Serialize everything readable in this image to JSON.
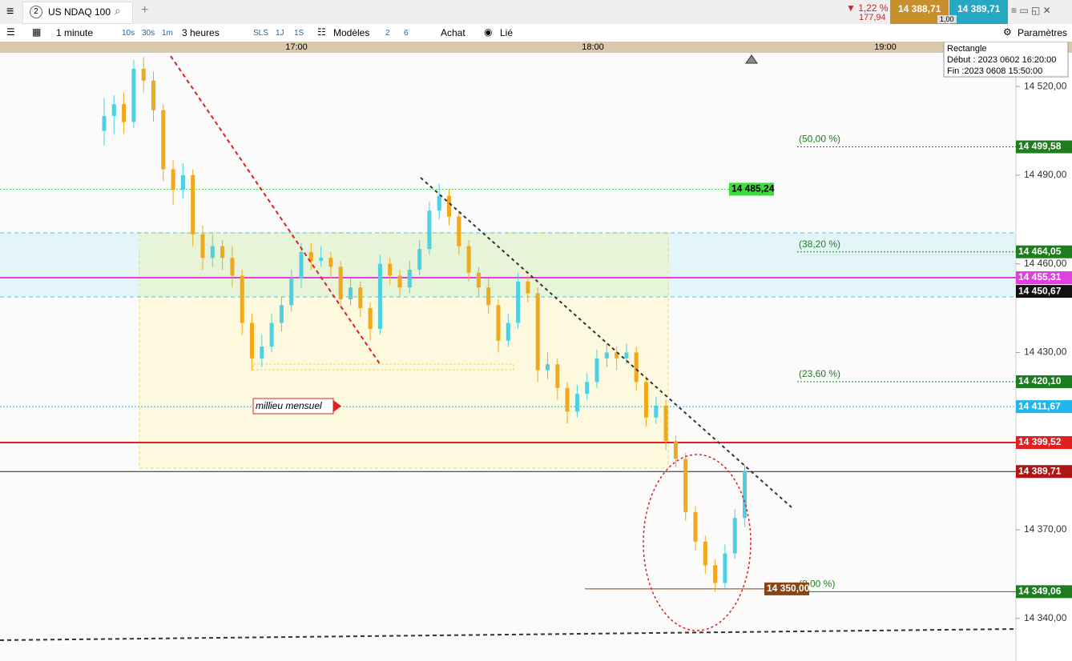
{
  "header": {
    "tab_number": "2",
    "instrument": "US NDAQ 100",
    "change_pct": "▼ 1,22 %",
    "change_pts": "177,94",
    "bid": "14 388,71",
    "spread": "1,00",
    "ask": "14 389,71"
  },
  "toolbar": {
    "interval": "1 minute",
    "quick": [
      "10s",
      "30s",
      "1m"
    ],
    "range": "3 heures",
    "periods": [
      "SLS",
      "1J",
      "1S"
    ],
    "templates": "Modèles",
    "n2": "2",
    "n6": "6",
    "buy": "Achat",
    "link": "Lié",
    "settings": "Paramètres"
  },
  "tooltip": {
    "title": "Rectangle",
    "start": "Début : 2023 0602 16:20:00",
    "end": "Fin :2023 0608 15:50:00"
  },
  "annotation": "millieu mensuel",
  "chart_data": {
    "type": "candlestick",
    "time_labels": [
      "17:00",
      "18:00",
      "19:00"
    ],
    "up_color": "#4dd0e1",
    "down_color": "#f0a81c",
    "ylim": [
      14325.6,
      14531.4
    ],
    "yticks": [
      {
        "value": 14520,
        "label": "14 520,00"
      },
      {
        "value": 14490,
        "label": "14 490,00"
      },
      {
        "value": 14460,
        "label": "14 460,00"
      },
      {
        "value": 14430,
        "label": "14 430,00"
      },
      {
        "value": 14370,
        "label": "14 370,00"
      },
      {
        "value": 14340,
        "label": "14 340,00"
      }
    ],
    "levels": [
      {
        "value": 14499.58,
        "label": "14 499,58",
        "kind": "fib",
        "fib": "(50,00 %)",
        "color": "#1e7d1e",
        "style": "dotted"
      },
      {
        "value": 14485.24,
        "label": "14 485,24",
        "kind": "alert",
        "color": "#3ddc3d",
        "style": "dotted"
      },
      {
        "value": 14464.05,
        "label": "14 464,05",
        "kind": "fib",
        "fib": "(38,20 %)",
        "color": "#1e7d1e",
        "style": "dotted"
      },
      {
        "value": 14455.31,
        "label": "14 455,31",
        "kind": "full",
        "color": "#e040e0",
        "style": "solid"
      },
      {
        "value": 14450.67,
        "label": "14 450,67",
        "kind": "axis",
        "color": "#111111",
        "style": "none"
      },
      {
        "value": 14420.1,
        "label": "14 420,10",
        "kind": "fib",
        "fib": "(23,60 %)",
        "color": "#1e7d1e",
        "style": "dotted"
      },
      {
        "value": 14411.67,
        "label": "14 411,67",
        "kind": "full",
        "color": "#1fb6f0",
        "style": "dotted"
      },
      {
        "value": 14399.52,
        "label": "14 399,52",
        "kind": "full",
        "color": "#e0201f",
        "style": "solid"
      },
      {
        "value": 14389.71,
        "label": "14 389,71",
        "kind": "full",
        "color": "#b01515",
        "style": "solid"
      },
      {
        "value": 14349.06,
        "label": "14 349,06",
        "kind": "fib",
        "fib": "(0,00 %)",
        "color": "#1e7d1e",
        "style": "solid"
      },
      {
        "value": 14350.0,
        "label": "14 350,00",
        "kind": "target",
        "color": "#8b4513",
        "style": "solid"
      }
    ],
    "ohlc": [
      [
        14505,
        14516,
        14500,
        14510
      ],
      [
        14510,
        14517,
        14504,
        14514
      ],
      [
        14514,
        14518,
        14504,
        14508
      ],
      [
        14508,
        14529,
        14506,
        14526
      ],
      [
        14526,
        14530,
        14518,
        14522
      ],
      [
        14522,
        14525,
        14508,
        14512
      ],
      [
        14512,
        14514,
        14488,
        14492
      ],
      [
        14492,
        14495,
        14480,
        14485
      ],
      [
        14485,
        14494,
        14482,
        14490
      ],
      [
        14490,
        14492,
        14466,
        14470
      ],
      [
        14470,
        14473,
        14458,
        14462
      ],
      [
        14462,
        14470,
        14459,
        14466
      ],
      [
        14466,
        14468,
        14458,
        14462
      ],
      [
        14462,
        14466,
        14452,
        14456
      ],
      [
        14456,
        14458,
        14436,
        14440
      ],
      [
        14440,
        14443,
        14424,
        14428
      ],
      [
        14428,
        14436,
        14425,
        14432
      ],
      [
        14432,
        14443,
        14430,
        14440
      ],
      [
        14440,
        14449,
        14437,
        14446
      ],
      [
        14446,
        14458,
        14444,
        14455
      ],
      [
        14455,
        14467,
        14452,
        14464
      ],
      [
        14464,
        14467,
        14458,
        14461
      ],
      [
        14461,
        14466,
        14459,
        14462
      ],
      [
        14462,
        14464,
        14455,
        14459
      ],
      [
        14459,
        14461,
        14445,
        14448
      ],
      [
        14448,
        14455,
        14446,
        14452
      ],
      [
        14452,
        14454,
        14442,
        14445
      ],
      [
        14445,
        14447,
        14434,
        14438
      ],
      [
        14438,
        14463,
        14436,
        14460
      ],
      [
        14460,
        14462,
        14453,
        14456
      ],
      [
        14456,
        14458,
        14449,
        14452
      ],
      [
        14452,
        14461,
        14450,
        14458
      ],
      [
        14458,
        14468,
        14456,
        14465
      ],
      [
        14465,
        14481,
        14463,
        14478
      ],
      [
        14478,
        14487,
        14475,
        14483
      ],
      [
        14483,
        14485,
        14473,
        14476
      ],
      [
        14476,
        14478,
        14463,
        14466
      ],
      [
        14466,
        14468,
        14454,
        14457
      ],
      [
        14457,
        14459,
        14449,
        14452
      ],
      [
        14452,
        14455,
        14443,
        14446
      ],
      [
        14446,
        14448,
        14430,
        14434
      ],
      [
        14434,
        14443,
        14432,
        14440
      ],
      [
        14440,
        14457,
        14438,
        14454
      ],
      [
        14454,
        14456,
        14447,
        14450
      ],
      [
        14450,
        14452,
        14420,
        14424
      ],
      [
        14424,
        14430,
        14421,
        14426
      ],
      [
        14426,
        14428,
        14414,
        14418
      ],
      [
        14418,
        14420,
        14406,
        14410
      ],
      [
        14410,
        14419,
        14408,
        14416
      ],
      [
        14416,
        14423,
        14414,
        14420
      ],
      [
        14420,
        14431,
        14418,
        14428
      ],
      [
        14428,
        14433,
        14425,
        14430
      ],
      [
        14430,
        14432,
        14424,
        14428
      ],
      [
        14428,
        14433,
        14426,
        14430
      ],
      [
        14430,
        14432,
        14417,
        14420
      ],
      [
        14420,
        14422,
        14405,
        14408
      ],
      [
        14408,
        14415,
        14406,
        14412
      ],
      [
        14412,
        14414,
        14397,
        14400
      ],
      [
        14400,
        14402,
        14391,
        14394
      ],
      [
        14394,
        14396,
        14373,
        14376
      ],
      [
        14376,
        14378,
        14363,
        14366
      ],
      [
        14366,
        14368,
        14355,
        14358
      ],
      [
        14358,
        14360,
        14349,
        14352
      ],
      [
        14352,
        14365,
        14350,
        14362
      ],
      [
        14362,
        14377,
        14360,
        14374
      ],
      [
        14374,
        14392,
        14371,
        14390
      ]
    ]
  }
}
